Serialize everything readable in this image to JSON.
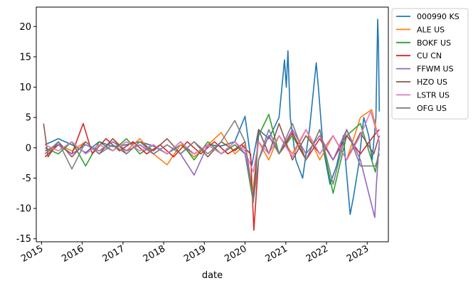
{
  "chart_data": {
    "type": "line",
    "title": "",
    "xlabel": "date",
    "ylabel": "",
    "ylim": [
      -15.5,
      23.2
    ],
    "xlim": [
      "2014-11-15",
      "2023-07-10"
    ],
    "grid": false,
    "legend_position": "outside-top-right",
    "y_ticks": [
      -15,
      -10,
      -5,
      0,
      5,
      10,
      15,
      20
    ],
    "x_ticks": [
      {
        "label": "2015",
        "date": "2015-01-01"
      },
      {
        "label": "2016",
        "date": "2016-01-01"
      },
      {
        "label": "2017",
        "date": "2017-01-01"
      },
      {
        "label": "2018",
        "date": "2018-01-01"
      },
      {
        "label": "2019",
        "date": "2019-01-01"
      },
      {
        "label": "2020",
        "date": "2020-01-01"
      },
      {
        "label": "2021",
        "date": "2021-01-01"
      },
      {
        "label": "2022",
        "date": "2022-01-01"
      },
      {
        "label": "2023",
        "date": "2023-01-01"
      }
    ],
    "series": [
      {
        "name": "000990 KS",
        "color": "#1f77b4",
        "points": [
          [
            "2015-02-01",
            0.5
          ],
          [
            "2015-06-01",
            1.5
          ],
          [
            "2015-10-01",
            0.5
          ],
          [
            "2016-02-01",
            -0.8
          ],
          [
            "2016-06-01",
            1
          ],
          [
            "2016-10-01",
            0.2
          ],
          [
            "2017-02-01",
            0.5
          ],
          [
            "2017-06-01",
            1
          ],
          [
            "2017-10-01",
            0.3
          ],
          [
            "2018-02-01",
            -1
          ],
          [
            "2018-06-01",
            0.5
          ],
          [
            "2018-10-01",
            -1
          ],
          [
            "2019-02-01",
            0.5
          ],
          [
            "2019-06-01",
            0.3
          ],
          [
            "2019-10-01",
            1
          ],
          [
            "2020-01-01",
            5.2
          ],
          [
            "2020-03-01",
            -3
          ],
          [
            "2020-05-01",
            3
          ],
          [
            "2020-08-01",
            1.5
          ],
          [
            "2020-11-01",
            5
          ],
          [
            "2020-12-20",
            14.5
          ],
          [
            "2021-01-05",
            10
          ],
          [
            "2021-01-20",
            16
          ],
          [
            "2021-02-10",
            5
          ],
          [
            "2021-04-01",
            -2
          ],
          [
            "2021-06-01",
            -5
          ],
          [
            "2021-08-01",
            3
          ],
          [
            "2021-10-01",
            14
          ],
          [
            "2021-10-20",
            10
          ],
          [
            "2021-12-01",
            0
          ],
          [
            "2022-02-01",
            -6
          ],
          [
            "2022-04-01",
            -3
          ],
          [
            "2022-06-01",
            2
          ],
          [
            "2022-08-01",
            -11
          ],
          [
            "2022-09-01",
            -8
          ],
          [
            "2022-10-15",
            -3
          ],
          [
            "2022-12-01",
            5
          ],
          [
            "2023-01-15",
            2
          ],
          [
            "2023-02-15",
            -2
          ],
          [
            "2023-03-20",
            5
          ],
          [
            "2023-04-05",
            21.2
          ],
          [
            "2023-04-12",
            17
          ],
          [
            "2023-04-20",
            6
          ]
        ]
      },
      {
        "name": "ALE US",
        "color": "#ff7f0e",
        "points": [
          [
            "2015-02-01",
            -1
          ],
          [
            "2015-06-01",
            0.5
          ],
          [
            "2015-10-01",
            -0.5
          ],
          [
            "2016-02-01",
            1
          ],
          [
            "2016-06-01",
            -1
          ],
          [
            "2016-10-01",
            1.5
          ],
          [
            "2017-02-01",
            -0.5
          ],
          [
            "2017-06-01",
            1.5
          ],
          [
            "2017-10-01",
            -1
          ],
          [
            "2018-02-01",
            -2.8
          ],
          [
            "2018-06-01",
            0.5
          ],
          [
            "2018-10-01",
            -1.5
          ],
          [
            "2019-02-01",
            0.5
          ],
          [
            "2019-06-01",
            2.5
          ],
          [
            "2019-10-01",
            -1
          ],
          [
            "2020-01-01",
            0.5
          ],
          [
            "2020-03-10",
            -7.3
          ],
          [
            "2020-05-01",
            1
          ],
          [
            "2020-08-01",
            -2
          ],
          [
            "2020-11-01",
            2
          ],
          [
            "2021-03-01",
            -1
          ],
          [
            "2021-07-01",
            3
          ],
          [
            "2021-11-01",
            -2
          ],
          [
            "2022-03-01",
            2
          ],
          [
            "2022-07-01",
            -2
          ],
          [
            "2022-11-01",
            5
          ],
          [
            "2023-02-10",
            6.3
          ],
          [
            "2023-04-20",
            1
          ]
        ]
      },
      {
        "name": "BOKF US",
        "color": "#2ca02c",
        "points": [
          [
            "2015-02-01",
            0
          ],
          [
            "2015-06-01",
            -1
          ],
          [
            "2015-10-01",
            1
          ],
          [
            "2016-02-01",
            -3
          ],
          [
            "2016-06-01",
            1
          ],
          [
            "2016-10-01",
            -0.5
          ],
          [
            "2017-02-01",
            1.5
          ],
          [
            "2017-06-01",
            -1
          ],
          [
            "2017-10-01",
            0.5
          ],
          [
            "2018-02-01",
            -1
          ],
          [
            "2018-06-01",
            1
          ],
          [
            "2018-10-01",
            -2
          ],
          [
            "2019-02-01",
            1
          ],
          [
            "2019-06-01",
            -1
          ],
          [
            "2019-10-01",
            0.5
          ],
          [
            "2020-01-01",
            -1
          ],
          [
            "2020-03-15",
            -9
          ],
          [
            "2020-05-01",
            2
          ],
          [
            "2020-08-01",
            5.5
          ],
          [
            "2020-11-01",
            -1
          ],
          [
            "2021-03-01",
            2
          ],
          [
            "2021-07-01",
            -2
          ],
          [
            "2021-11-01",
            3
          ],
          [
            "2022-03-01",
            -7.5
          ],
          [
            "2022-07-01",
            2
          ],
          [
            "2022-11-01",
            4
          ],
          [
            "2023-03-15",
            -4
          ],
          [
            "2023-04-20",
            0
          ]
        ]
      },
      {
        "name": "CU CN",
        "color": "#d62728",
        "points": [
          [
            "2015-02-01",
            -1.5
          ],
          [
            "2015-06-01",
            0.5
          ],
          [
            "2015-10-01",
            -1
          ],
          [
            "2016-01-10",
            4
          ],
          [
            "2016-04-01",
            -1
          ],
          [
            "2016-08-01",
            1.5
          ],
          [
            "2016-12-01",
            -0.5
          ],
          [
            "2017-04-01",
            1
          ],
          [
            "2017-08-01",
            -1
          ],
          [
            "2017-12-01",
            0.5
          ],
          [
            "2018-04-01",
            -1.5
          ],
          [
            "2018-08-01",
            1
          ],
          [
            "2018-12-01",
            -1
          ],
          [
            "2019-04-01",
            1
          ],
          [
            "2019-08-01",
            -1
          ],
          [
            "2019-12-01",
            0.5
          ],
          [
            "2020-02-20",
            -1
          ],
          [
            "2020-03-20",
            -13.6
          ],
          [
            "2020-05-01",
            -2
          ],
          [
            "2020-08-01",
            2
          ],
          [
            "2020-11-01",
            -1
          ],
          [
            "2021-03-01",
            2.5
          ],
          [
            "2021-07-01",
            -2
          ],
          [
            "2021-11-01",
            1.5
          ],
          [
            "2022-03-01",
            -2
          ],
          [
            "2022-07-01",
            2
          ],
          [
            "2022-11-01",
            -1
          ],
          [
            "2023-03-01",
            2
          ],
          [
            "2023-04-20",
            3
          ]
        ]
      },
      {
        "name": "FFWM US",
        "color": "#9467bd",
        "points": [
          [
            "2015-02-01",
            -0.5
          ],
          [
            "2015-06-01",
            0.5
          ],
          [
            "2015-10-01",
            -1
          ],
          [
            "2016-02-01",
            0.5
          ],
          [
            "2016-06-01",
            -0.5
          ],
          [
            "2016-10-01",
            1
          ],
          [
            "2017-02-01",
            -0.5
          ],
          [
            "2017-06-01",
            0.5
          ],
          [
            "2017-10-01",
            -1
          ],
          [
            "2018-02-01",
            0.5
          ],
          [
            "2018-06-01",
            -1
          ],
          [
            "2018-10-01",
            -4.5
          ],
          [
            "2019-02-01",
            0.5
          ],
          [
            "2019-06-01",
            -1
          ],
          [
            "2019-10-01",
            1
          ],
          [
            "2020-01-01",
            -1
          ],
          [
            "2020-03-15",
            -8
          ],
          [
            "2020-05-01",
            -2
          ],
          [
            "2020-08-01",
            2
          ],
          [
            "2020-11-01",
            -1
          ],
          [
            "2021-03-01",
            3
          ],
          [
            "2021-07-01",
            -1
          ],
          [
            "2021-11-01",
            2
          ],
          [
            "2022-03-01",
            -2
          ],
          [
            "2022-07-01",
            3
          ],
          [
            "2022-11-01",
            -2
          ],
          [
            "2023-03-10",
            -11.5
          ],
          [
            "2023-03-25",
            -6
          ],
          [
            "2023-04-20",
            1
          ]
        ]
      },
      {
        "name": "HZO US",
        "color": "#8c564b",
        "points": [
          [
            "2015-01-20",
            4
          ],
          [
            "2015-03-01",
            -1.5
          ],
          [
            "2015-06-01",
            1
          ],
          [
            "2015-10-01",
            -1.5
          ],
          [
            "2016-02-01",
            1
          ],
          [
            "2016-06-01",
            -1
          ],
          [
            "2016-10-01",
            1.5
          ],
          [
            "2017-02-01",
            -1
          ],
          [
            "2017-06-01",
            1
          ],
          [
            "2017-10-01",
            -0.5
          ],
          [
            "2018-02-01",
            1.5
          ],
          [
            "2018-06-01",
            -1
          ],
          [
            "2018-10-01",
            1
          ],
          [
            "2019-02-01",
            -1.5
          ],
          [
            "2019-06-01",
            1
          ],
          [
            "2019-10-01",
            -0.5
          ],
          [
            "2020-01-01",
            1
          ],
          [
            "2020-03-15",
            -8.5
          ],
          [
            "2020-05-01",
            3
          ],
          [
            "2020-08-01",
            -1
          ],
          [
            "2020-11-01",
            4
          ],
          [
            "2021-03-01",
            -2
          ],
          [
            "2021-07-01",
            2
          ],
          [
            "2021-11-01",
            -1
          ],
          [
            "2022-03-01",
            2
          ],
          [
            "2022-07-01",
            -2
          ],
          [
            "2022-11-01",
            2.5
          ],
          [
            "2023-03-01",
            -1
          ],
          [
            "2023-04-20",
            2
          ]
        ]
      },
      {
        "name": "LSTR US",
        "color": "#e377c2",
        "points": [
          [
            "2015-02-01",
            0.5
          ],
          [
            "2015-06-01",
            -0.5
          ],
          [
            "2015-10-01",
            1
          ],
          [
            "2016-02-01",
            -1
          ],
          [
            "2016-06-01",
            0.5
          ],
          [
            "2016-10-01",
            -0.5
          ],
          [
            "2017-02-01",
            1
          ],
          [
            "2017-06-01",
            -0.5
          ],
          [
            "2017-10-01",
            0.5
          ],
          [
            "2018-02-01",
            -1
          ],
          [
            "2018-06-01",
            1
          ],
          [
            "2018-10-01",
            -1
          ],
          [
            "2019-02-01",
            0.5
          ],
          [
            "2019-06-01",
            -1
          ],
          [
            "2019-10-01",
            1
          ],
          [
            "2020-01-01",
            -0.5
          ],
          [
            "2020-03-15",
            -4
          ],
          [
            "2020-05-01",
            1
          ],
          [
            "2020-08-01",
            -1
          ],
          [
            "2020-11-01",
            2
          ],
          [
            "2021-03-01",
            -1.5
          ],
          [
            "2021-07-01",
            3
          ],
          [
            "2021-11-01",
            -1
          ],
          [
            "2022-03-01",
            2
          ],
          [
            "2022-07-01",
            -2
          ],
          [
            "2022-11-01",
            2
          ],
          [
            "2023-02-01",
            6
          ],
          [
            "2023-04-20",
            1
          ]
        ]
      },
      {
        "name": "OFG US",
        "color": "#7f7f7f",
        "points": [
          [
            "2015-02-01",
            -1
          ],
          [
            "2015-06-01",
            1
          ],
          [
            "2015-10-01",
            -3.5
          ],
          [
            "2016-02-01",
            1
          ],
          [
            "2016-06-01",
            -1
          ],
          [
            "2016-10-01",
            0.5
          ],
          [
            "2017-02-01",
            -1
          ],
          [
            "2017-06-01",
            1
          ],
          [
            "2017-10-01",
            -1
          ],
          [
            "2018-02-01",
            0.5
          ],
          [
            "2018-06-01",
            -1
          ],
          [
            "2018-10-01",
            1
          ],
          [
            "2019-02-01",
            -1
          ],
          [
            "2019-06-01",
            1
          ],
          [
            "2019-10-01",
            4.5
          ],
          [
            "2020-01-01",
            1
          ],
          [
            "2020-03-15",
            -9
          ],
          [
            "2020-05-01",
            -2
          ],
          [
            "2020-08-01",
            3
          ],
          [
            "2020-11-01",
            -1
          ],
          [
            "2021-03-01",
            4
          ],
          [
            "2021-07-01",
            -2
          ],
          [
            "2021-11-01",
            3
          ],
          [
            "2022-03-01",
            -6
          ],
          [
            "2022-07-01",
            3
          ],
          [
            "2022-11-01",
            -3
          ],
          [
            "2023-03-15",
            -3
          ],
          [
            "2023-04-20",
            -1
          ]
        ]
      }
    ]
  }
}
